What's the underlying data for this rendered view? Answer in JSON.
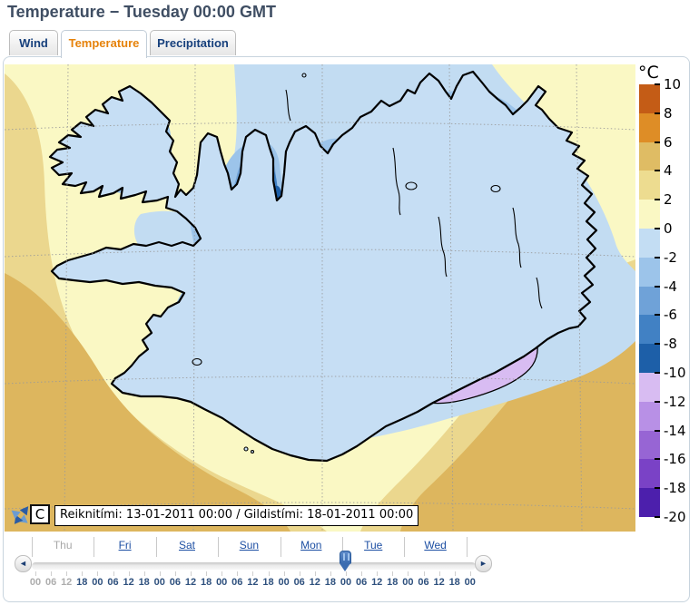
{
  "title": "Temperature − Tuesday 00:00 GMT",
  "tabs": [
    {
      "id": "wind",
      "label": "Wind",
      "active": false
    },
    {
      "id": "temperature",
      "label": "Temperature",
      "active": true
    },
    {
      "id": "precipitation",
      "label": "Precipitation",
      "active": false
    }
  ],
  "map": {
    "info_bar": "Reiknitími: 13-01-2011 00:00 / Gildistími: 18-01-2011 00:00",
    "c_button_label": "C",
    "compass_icon": "pan-compass-icon",
    "region": "Iceland temperature contour map"
  },
  "legend": {
    "unit": "°C",
    "tick_labels": [
      "10",
      "8",
      "6",
      "4",
      "2",
      "0",
      "-2",
      "-4",
      "-6",
      "-8",
      "-10",
      "-12",
      "-14",
      "-16",
      "-18",
      "-20"
    ],
    "band_colors": [
      "#c45c16",
      "#de8d26",
      "#dfbc64",
      "#eddc90",
      "#faf8c4",
      "#c3ddf3",
      "#9cc4ea",
      "#6fa2d8",
      "#4181c4",
      "#1d5fa8",
      "#d8bcf2",
      "#b890e6",
      "#9765d4",
      "#7a42c6",
      "#4c1fac"
    ]
  },
  "timeline": {
    "days": [
      {
        "label": "Thu",
        "enabled": false
      },
      {
        "label": "Fri",
        "enabled": true
      },
      {
        "label": "Sat",
        "enabled": true
      },
      {
        "label": "Sun",
        "enabled": true
      },
      {
        "label": "Mon",
        "enabled": true
      },
      {
        "label": "Tue",
        "enabled": true
      },
      {
        "label": "Wed",
        "enabled": true
      }
    ],
    "hours": [
      "00",
      "06",
      "12",
      "18",
      "00",
      "06",
      "12",
      "18",
      "00",
      "06",
      "12",
      "18",
      "00",
      "06",
      "12",
      "18",
      "00",
      "06",
      "12",
      "18",
      "00",
      "06",
      "12",
      "18",
      "00",
      "06",
      "12",
      "18",
      "00"
    ],
    "past_hour_count": 3,
    "selected_index": 20,
    "prev_label": "◄",
    "next_label": "►"
  },
  "colors": {
    "accent_orange": "#e6820a",
    "link_blue": "#1d4fa3",
    "title": "#3f4e63",
    "sea_warm_gold": "#ddb65e",
    "sea_mild_gold": "#ebd78e",
    "sea_pale_yellow": "#faf8c4",
    "sea_cold_blue": "#c2dcf2",
    "land_dark_blue": "#1d5fa8",
    "glacier_core_purple": "#4c1fac"
  }
}
